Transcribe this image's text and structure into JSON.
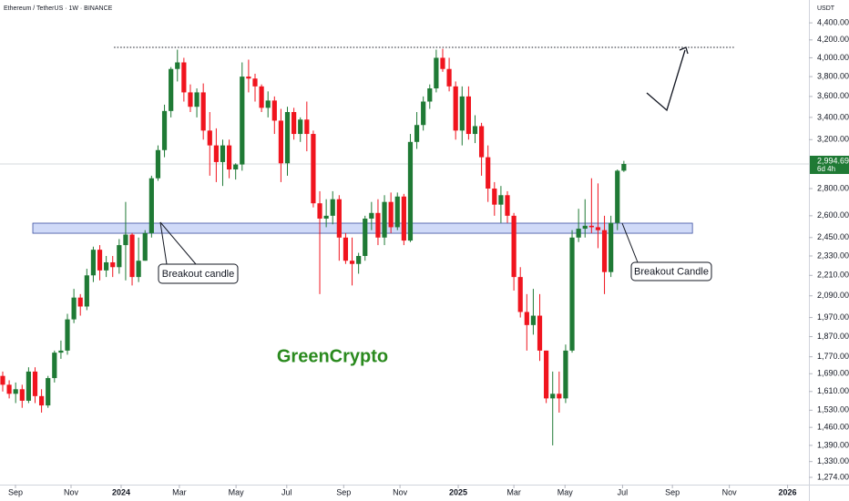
{
  "chart_data": {
    "type": "candlestick",
    "title": "Ethereum / TetherUS · 1W · BINANCE",
    "y_unit": "USDT",
    "watermark": "GreenCrypto",
    "log_scale": true,
    "up_color": "#1f7a35",
    "down_color": "#f0141e",
    "x": [
      0,
      1,
      2,
      3,
      4,
      5,
      6,
      7,
      8,
      9,
      10,
      11,
      12,
      13,
      14,
      15,
      16,
      17,
      18,
      19,
      20,
      21,
      22,
      23,
      24,
      25,
      26,
      27,
      28,
      29,
      30,
      31,
      32,
      33,
      34,
      35,
      36,
      37,
      38,
      39,
      40,
      41,
      42,
      43,
      44,
      45,
      46,
      47,
      48,
      49,
      50,
      51,
      52,
      53,
      54,
      55,
      56,
      57,
      58,
      59,
      60,
      61,
      62,
      63,
      64,
      65,
      66,
      67,
      68,
      69,
      70,
      71,
      72,
      73,
      74,
      75,
      76,
      77,
      78,
      79,
      80,
      81,
      82,
      83,
      84,
      85,
      86,
      87,
      88,
      89,
      90,
      91,
      92,
      93,
      94,
      95,
      96
    ],
    "ohlc": [
      [
        1680,
        1700,
        1610,
        1640
      ],
      [
        1640,
        1660,
        1580,
        1600
      ],
      [
        1600,
        1650,
        1560,
        1620
      ],
      [
        1620,
        1640,
        1540,
        1570
      ],
      [
        1570,
        1720,
        1560,
        1700
      ],
      [
        1700,
        1720,
        1560,
        1590
      ],
      [
        1590,
        1620,
        1520,
        1550
      ],
      [
        1550,
        1680,
        1540,
        1670
      ],
      [
        1670,
        1800,
        1650,
        1790
      ],
      [
        1790,
        1850,
        1760,
        1800
      ],
      [
        1800,
        1990,
        1780,
        1960
      ],
      [
        1960,
        2130,
        1940,
        2080
      ],
      [
        2080,
        2100,
        1980,
        2030
      ],
      [
        2030,
        2250,
        2010,
        2210
      ],
      [
        2210,
        2390,
        2170,
        2370
      ],
      [
        2370,
        2400,
        2180,
        2240
      ],
      [
        2240,
        2330,
        2200,
        2290
      ],
      [
        2290,
        2330,
        2200,
        2260
      ],
      [
        2260,
        2440,
        2220,
        2400
      ],
      [
        2400,
        2700,
        2180,
        2470
      ],
      [
        2470,
        2480,
        2150,
        2200
      ],
      [
        2200,
        2450,
        2170,
        2300
      ],
      [
        2300,
        2500,
        2300,
        2480
      ],
      [
        2480,
        2900,
        2450,
        2880
      ],
      [
        2880,
        3150,
        2860,
        3110
      ],
      [
        3110,
        3520,
        3050,
        3460
      ],
      [
        3460,
        3900,
        3400,
        3880
      ],
      [
        3880,
        4090,
        3750,
        3950
      ],
      [
        3950,
        4000,
        3550,
        3640
      ],
      [
        3640,
        3720,
        3450,
        3500
      ],
      [
        3500,
        3680,
        3400,
        3640
      ],
      [
        3640,
        3730,
        3200,
        3280
      ],
      [
        3280,
        3450,
        2900,
        3150
      ],
      [
        3150,
        3300,
        2850,
        3010
      ],
      [
        3010,
        3200,
        2820,
        3150
      ],
      [
        3150,
        3200,
        2880,
        2950
      ],
      [
        2950,
        3000,
        2870,
        2990
      ],
      [
        2990,
        3950,
        2940,
        3800
      ],
      [
        3800,
        3980,
        3640,
        3780
      ],
      [
        3780,
        3830,
        3550,
        3700
      ],
      [
        3700,
        3720,
        3450,
        3490
      ],
      [
        3490,
        3650,
        3400,
        3560
      ],
      [
        3560,
        3600,
        3250,
        3370
      ],
      [
        3370,
        3480,
        2850,
        3000
      ],
      [
        3000,
        3500,
        2900,
        3450
      ],
      [
        3450,
        3490,
        3200,
        3250
      ],
      [
        3250,
        3400,
        3180,
        3380
      ],
      [
        3380,
        3550,
        3100,
        3250
      ],
      [
        3250,
        3280,
        2660,
        2690
      ],
      [
        2690,
        2780,
        2100,
        2580
      ],
      [
        2580,
        2720,
        2520,
        2600
      ],
      [
        2600,
        2780,
        2540,
        2720
      ],
      [
        2720,
        2750,
        2300,
        2450
      ],
      [
        2450,
        2480,
        2280,
        2300
      ],
      [
        2300,
        2450,
        2150,
        2280
      ],
      [
        2280,
        2350,
        2220,
        2330
      ],
      [
        2330,
        2600,
        2300,
        2580
      ],
      [
        2580,
        2700,
        2500,
        2620
      ],
      [
        2620,
        2720,
        2400,
        2450
      ],
      [
        2450,
        2750,
        2400,
        2700
      ],
      [
        2700,
        2770,
        2480,
        2520
      ],
      [
        2520,
        2770,
        2500,
        2740
      ],
      [
        2740,
        2760,
        2400,
        2430
      ],
      [
        2430,
        3250,
        2420,
        3180
      ],
      [
        3180,
        3450,
        3120,
        3330
      ],
      [
        3330,
        3600,
        3280,
        3550
      ],
      [
        3550,
        3720,
        3480,
        3680
      ],
      [
        3680,
        4090,
        3640,
        4000
      ],
      [
        4000,
        4100,
        3850,
        3880
      ],
      [
        3880,
        4000,
        3650,
        3700
      ],
      [
        3700,
        3750,
        3200,
        3280
      ],
      [
        3280,
        3700,
        3150,
        3600
      ],
      [
        3600,
        3700,
        3200,
        3250
      ],
      [
        3250,
        3420,
        3170,
        3320
      ],
      [
        3320,
        3350,
        2900,
        3050
      ],
      [
        3050,
        3150,
        2700,
        2800
      ],
      [
        2800,
        2850,
        2600,
        2680
      ],
      [
        2680,
        2820,
        2550,
        2750
      ],
      [
        2750,
        2780,
        2550,
        2600
      ],
      [
        2600,
        2620,
        2120,
        2200
      ],
      [
        2200,
        2260,
        1970,
        2000
      ],
      [
        2000,
        2100,
        1800,
        1930
      ],
      [
        1930,
        2130,
        1880,
        1980
      ],
      [
        1980,
        2100,
        1750,
        1800
      ],
      [
        1800,
        1800,
        1560,
        1580
      ],
      [
        1580,
        1700,
        1390,
        1600
      ],
      [
        1600,
        1700,
        1520,
        1580
      ],
      [
        1580,
        1830,
        1560,
        1800
      ],
      [
        1800,
        2500,
        1790,
        2450
      ],
      [
        2450,
        2650,
        2420,
        2510
      ],
      [
        2510,
        2720,
        2450,
        2530
      ],
      [
        2530,
        2880,
        2480,
        2520
      ],
      [
        2520,
        2840,
        2380,
        2500
      ],
      [
        2500,
        2600,
        2100,
        2230
      ],
      [
        2230,
        2600,
        2200,
        2550
      ],
      [
        2550,
        2950,
        2500,
        2940
      ],
      [
        2940,
        3020,
        2930,
        2994.69
      ]
    ],
    "xlim": [
      -0.42,
      124.6
    ],
    "xticks": [
      {
        "value": 1.97,
        "label": "Sep"
      },
      {
        "value": 10.56,
        "label": "Nov"
      },
      {
        "value": 18.3,
        "label": "2024"
      },
      {
        "value": 27.3,
        "label": "Mar"
      },
      {
        "value": 36.06,
        "label": "May"
      },
      {
        "value": 43.9,
        "label": "Jul"
      },
      {
        "value": 52.7,
        "label": "Sep"
      },
      {
        "value": 61.4,
        "label": "Nov"
      },
      {
        "value": 70.4,
        "label": "2025"
      },
      {
        "value": 79.0,
        "label": "Mar"
      },
      {
        "value": 86.9,
        "label": "May"
      },
      {
        "value": 95.8,
        "label": "Jul"
      },
      {
        "value": 103.5,
        "label": "Sep"
      },
      {
        "value": 112.3,
        "label": "Nov"
      },
      {
        "value": 121.3,
        "label": "2026"
      }
    ],
    "ylim": [
      1249,
      4683
    ],
    "yticks": [
      {
        "value": 4400,
        "label": "4,400.00"
      },
      {
        "value": 4200,
        "label": "4,200.00"
      },
      {
        "value": 4000,
        "label": "4,000.00"
      },
      {
        "value": 3800,
        "label": "3,800.00"
      },
      {
        "value": 3600,
        "label": "3,600.00"
      },
      {
        "value": 3400,
        "label": "3,400.00"
      },
      {
        "value": 3200,
        "label": "3,200.00"
      },
      {
        "value": 2800,
        "label": "2,800.00"
      },
      {
        "value": 2600,
        "label": "2,600.00"
      },
      {
        "value": 2450,
        "label": "2,450.00"
      },
      {
        "value": 2330,
        "label": "2,330.00"
      },
      {
        "value": 2210,
        "label": "2,210.00"
      },
      {
        "value": 2090,
        "label": "2,090.00"
      },
      {
        "value": 1970,
        "label": "1,970.00"
      },
      {
        "value": 1870,
        "label": "1,870.00"
      },
      {
        "value": 1770,
        "label": "1,770.00"
      },
      {
        "value": 1690,
        "label": "1,690.00"
      },
      {
        "value": 1610,
        "label": "1,610.00"
      },
      {
        "value": 1530,
        "label": "1,530.00"
      },
      {
        "value": 1460,
        "label": "1,460.00"
      },
      {
        "value": 1390,
        "label": "1,390.00"
      },
      {
        "value": 1330,
        "label": "1,330.00"
      },
      {
        "value": 1274,
        "label": "1,274.00"
      }
    ],
    "last_price": {
      "value": 2994.69,
      "label": "2,994.69"
    },
    "countdown": "6d 4h",
    "support_zone": [
      2479,
      2548
    ],
    "support_zone_x": [
      4.65,
      106.6
    ],
    "resistance": 4115,
    "resistance_x": [
      17.2,
      113
    ],
    "annotations": [
      "Breakout candle",
      "Breakout Candle"
    ]
  }
}
